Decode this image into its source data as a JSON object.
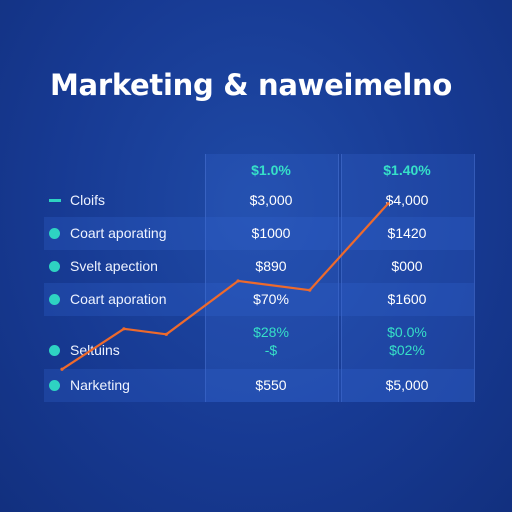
{
  "title": "Marketing & naweimelno",
  "table": {
    "header": {
      "col1": "$1.0%",
      "col2": "$1.40%"
    },
    "rows": [
      {
        "label": "Cloifs",
        "col1": "$3,000",
        "col2": "$4,000",
        "marker": "dash"
      },
      {
        "label": "Coart aporating",
        "col1": "$1000",
        "col2": "$1420",
        "marker": "dot"
      },
      {
        "label": "Svelt apection",
        "col1": "$890",
        "col2": "$000",
        "marker": "dot"
      },
      {
        "label": "Coart aporation",
        "col1": "$70%",
        "col2": "$1600",
        "marker": "dot"
      },
      {
        "label": "Seltuins",
        "col1": "$28%",
        "col1_sub": "-$",
        "col2": "$0.0%",
        "col2_sub": "$02%",
        "marker": "dot"
      },
      {
        "label": "Narketing",
        "col1": "$550",
        "col2": "$5,000",
        "marker": "dot"
      }
    ]
  },
  "chart_data": {
    "type": "line",
    "title": "Marketing & naweimelno",
    "series": [
      {
        "color": "#ee6a2c",
        "values": [
          0.08,
          0.3,
          0.27,
          0.56,
          0.51,
          0.98
        ]
      }
    ],
    "ylim": [
      0,
      1
    ],
    "grid": false
  },
  "colors": {
    "line": "#ee6a2c",
    "accent": "#36e0c8",
    "background": "#173a93"
  }
}
